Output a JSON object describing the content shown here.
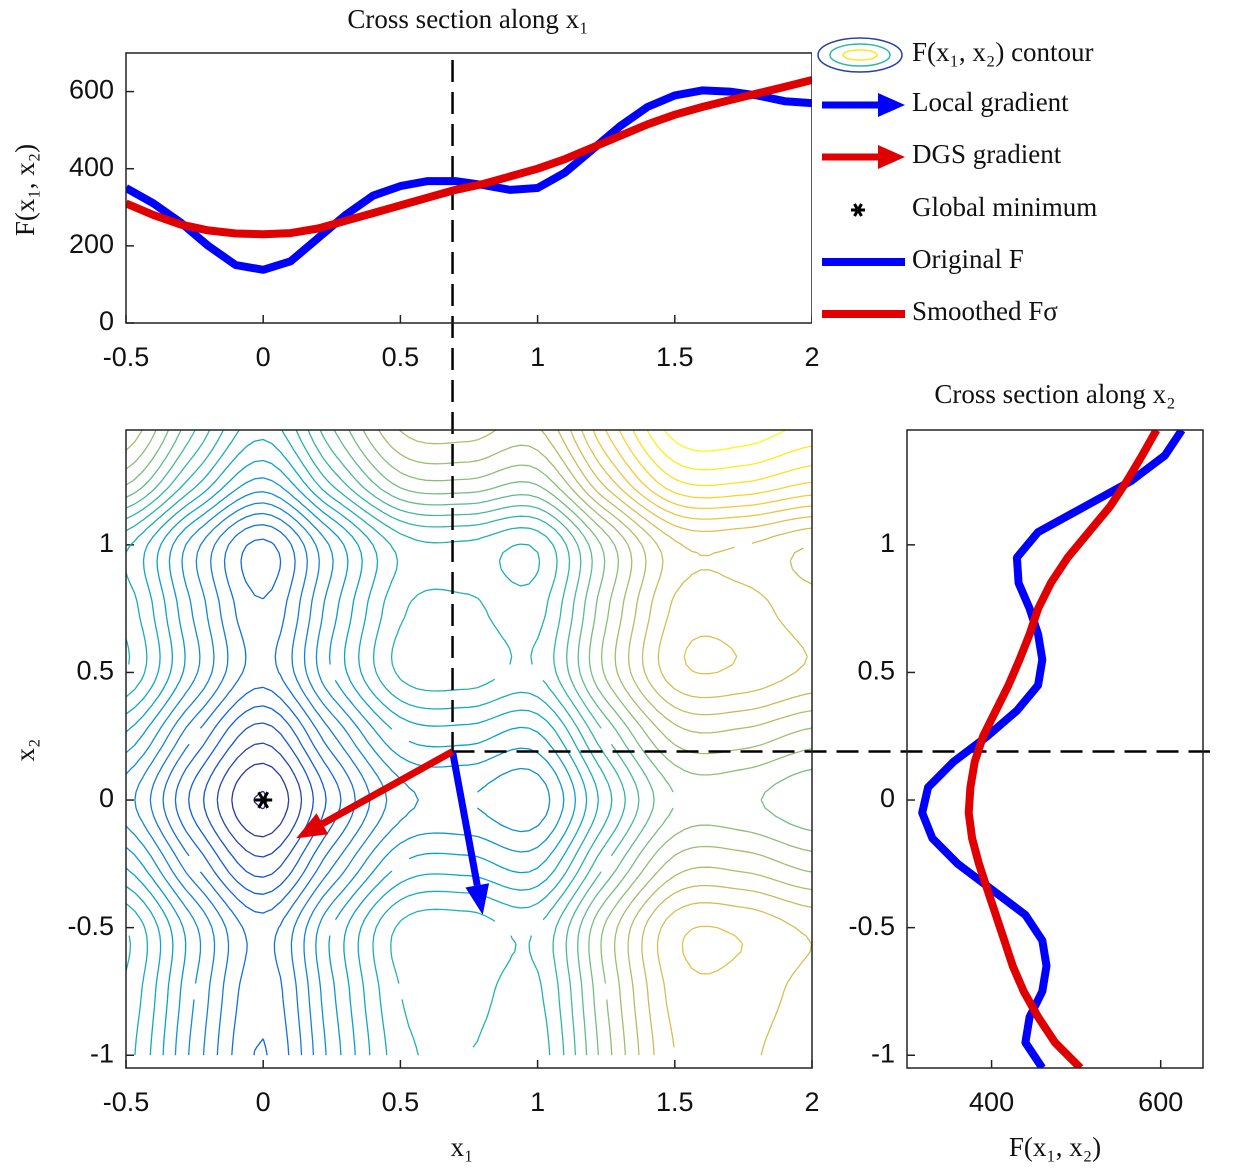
{
  "chart_data": [
    {
      "type": "line",
      "title": "Cross section along x₁",
      "ylabel": "F(x₁, x₂)",
      "x": [
        -0.5,
        -0.4,
        -0.3,
        -0.2,
        -0.1,
        0,
        0.1,
        0.2,
        0.3,
        0.4,
        0.5,
        0.6,
        0.7,
        0.8,
        0.9,
        1.0,
        1.1,
        1.2,
        1.3,
        1.4,
        1.5,
        1.6,
        1.7,
        1.8,
        1.9,
        2.0
      ],
      "series": [
        {
          "name": "Original F",
          "color": "#0000ff",
          "values": [
            350,
            310,
            260,
            200,
            150,
            138,
            160,
            220,
            280,
            330,
            355,
            368,
            368,
            358,
            345,
            350,
            390,
            450,
            510,
            560,
            590,
            603,
            600,
            590,
            575,
            570
          ]
        },
        {
          "name": "Smoothed Fσ",
          "color": "#e00000",
          "values": [
            310,
            280,
            255,
            240,
            232,
            230,
            233,
            245,
            265,
            285,
            305,
            325,
            345,
            360,
            380,
            400,
            425,
            455,
            485,
            515,
            540,
            560,
            578,
            595,
            612,
            630
          ]
        }
      ],
      "xlim": [
        -0.5,
        2
      ],
      "xticks": [
        -0.5,
        0,
        0.5,
        1,
        1.5,
        2
      ],
      "ylim": [
        0,
        700
      ],
      "yticks": [
        0,
        200,
        400,
        600
      ]
    },
    {
      "type": "contour",
      "xlabel": "x₁",
      "ylabel": "x₂",
      "contour_label": "F(x₁, x₂) contour",
      "x1": [
        -0.5,
        -0.25,
        0,
        0.25,
        0.5,
        0.75,
        1,
        1.25,
        1.5,
        1.75,
        2
      ],
      "x2": [
        -1,
        -0.75,
        -0.5,
        -0.25,
        0,
        0.25,
        0.5,
        0.75,
        1,
        1.25,
        1.5
      ],
      "z": [
        [
          435,
          315,
          223,
          335,
          440,
          450,
          435,
          565,
          675,
          680,
          655
        ],
        [
          445,
          325,
          233,
          345,
          450,
          460,
          445,
          575,
          685,
          690,
          665
        ],
        [
          450,
          330,
          238,
          350,
          455,
          465,
          450,
          580,
          690,
          695,
          670
        ],
        [
          370,
          250,
          158,
          270,
          375,
          385,
          370,
          500,
          610,
          615,
          590
        ],
        [
          310,
          190,
          98,
          210,
          315,
          325,
          310,
          440,
          550,
          555,
          530
        ],
        [
          370,
          250,
          158,
          270,
          375,
          385,
          370,
          500,
          610,
          615,
          590
        ],
        [
          450,
          330,
          238,
          350,
          455,
          465,
          450,
          580,
          690,
          695,
          670
        ],
        [
          440,
          320,
          228,
          340,
          445,
          455,
          440,
          570,
          680,
          685,
          660
        ],
        [
          430,
          310,
          218,
          330,
          435,
          445,
          430,
          560,
          670,
          675,
          650
        ],
        [
          557,
          437,
          345,
          457,
          562,
          572,
          557,
          687,
          797,
          802,
          777
        ],
        [
          630,
          510,
          418,
          530,
          635,
          645,
          630,
          760,
          870,
          875,
          850
        ]
      ],
      "levels": [
        100,
        125,
        150,
        175,
        200,
        225,
        250,
        275,
        300,
        325,
        350,
        375,
        400,
        425,
        450,
        475,
        500,
        525,
        550,
        575,
        600,
        625,
        650,
        675,
        700,
        725,
        750,
        775,
        800,
        825,
        850
      ],
      "colormap": [
        "#352a87",
        "#0f5cdd",
        "#1481d6",
        "#06a4ca",
        "#2eb7a4",
        "#87bf77",
        "#d1bb59",
        "#fec832",
        "#f9fb0e"
      ],
      "arrows": [
        {
          "name": "Local gradient",
          "color": "#0000ff",
          "x": [
            0.69,
            0.8
          ],
          "y": [
            0.19,
            -0.45
          ]
        },
        {
          "name": "DGS gradient",
          "color": "#e00000",
          "x": [
            0.69,
            0.12
          ],
          "y": [
            0.19,
            -0.15
          ]
        }
      ],
      "markers": [
        {
          "name": "Global minimum",
          "x": 0,
          "y": 0
        }
      ],
      "crosshair": {
        "x": 0.69,
        "y": 0.19
      },
      "xlim": [
        -0.5,
        2
      ],
      "xticks": [
        -0.5,
        0,
        0.5,
        1,
        1.5,
        2
      ],
      "ylim": [
        -1.05,
        1.45
      ],
      "yticks": [
        -1,
        -0.5,
        0,
        0.5,
        1
      ]
    },
    {
      "type": "line",
      "orientation": "horizontal",
      "title": "Cross section along x₂",
      "xlabel": "F(x₁, x₂)",
      "y": [
        -1.05,
        -0.95,
        -0.85,
        -0.75,
        -0.65,
        -0.55,
        -0.45,
        -0.35,
        -0.25,
        -0.15,
        -0.05,
        0.05,
        0.15,
        0.25,
        0.35,
        0.45,
        0.55,
        0.65,
        0.75,
        0.85,
        0.95,
        1.05,
        1.15,
        1.25,
        1.35,
        1.45
      ],
      "series": [
        {
          "color": "#0000ff",
          "values": [
            460,
            440,
            445,
            460,
            465,
            460,
            440,
            400,
            360,
            330,
            318,
            325,
            355,
            395,
            430,
            455,
            460,
            455,
            445,
            432,
            430,
            455,
            510,
            565,
            605,
            625
          ]
        },
        {
          "color": "#e00000",
          "values": [
            505,
            475,
            455,
            438,
            425,
            415,
            405,
            395,
            385,
            377,
            373,
            375,
            380,
            390,
            405,
            420,
            433,
            445,
            455,
            470,
            490,
            515,
            540,
            560,
            578,
            595
          ]
        }
      ],
      "xlim": [
        300,
        650
      ],
      "xticks": [
        400,
        600
      ],
      "ylim": [
        -1.05,
        1.45
      ],
      "yticks": [
        -1,
        -0.5,
        0,
        0.5,
        1
      ]
    }
  ]
}
